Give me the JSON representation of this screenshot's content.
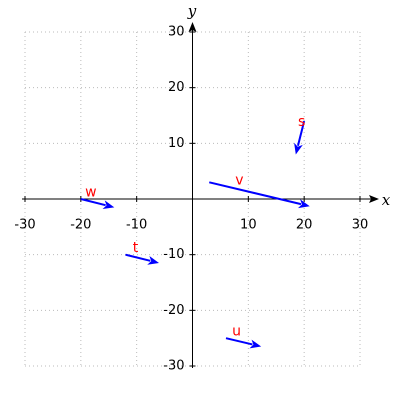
{
  "chart_data": {
    "type": "vector",
    "x_label": "x",
    "y_label": "y",
    "xlim": [
      -30,
      30
    ],
    "ylim": [
      -30,
      30
    ],
    "xticks": [
      -30,
      -20,
      -10,
      10,
      20,
      30
    ],
    "yticks": [
      -30,
      -20,
      -10,
      10,
      20,
      30
    ],
    "grid": true,
    "color": "#0000ff",
    "label_color": "#ff0000",
    "vectors": [
      {
        "name": "s",
        "from": [
          20,
          14
        ],
        "to": [
          18.5,
          8
        ]
      },
      {
        "name": "v",
        "from": [
          3,
          3
        ],
        "to": [
          21,
          -1.3
        ]
      },
      {
        "name": "w",
        "from": [
          -20,
          0
        ],
        "to": [
          -14,
          -1.5
        ]
      },
      {
        "name": "t",
        "from": [
          -12,
          -10
        ],
        "to": [
          -6,
          -11.5
        ]
      },
      {
        "name": "u",
        "from": [
          6,
          -25
        ],
        "to": [
          12.3,
          -26.5
        ]
      }
    ]
  }
}
